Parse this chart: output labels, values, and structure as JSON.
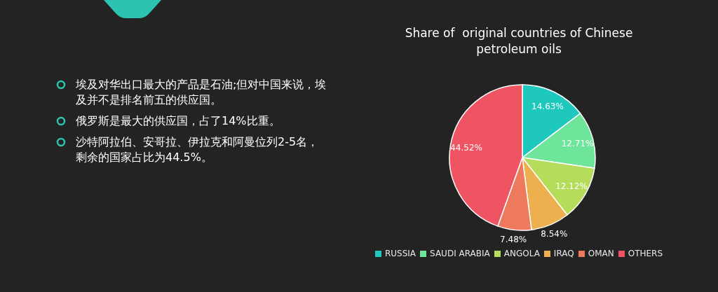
{
  "chart_data": {
    "type": "pie",
    "title": "Share of  original countries of Chinese petroleum oils",
    "categories": [
      "RUSSIA",
      "SAUDI ARABIA",
      "ANGOLA",
      "IRAQ",
      "OMAN",
      "OTHERS"
    ],
    "values": [
      14.63,
      12.71,
      12.12,
      8.54,
      7.48,
      44.52
    ],
    "value_labels": [
      "14.63%",
      "12.71%",
      "12.12%",
      "8.54%",
      "7.48%",
      "44.52%"
    ],
    "colors": [
      "#1fc8bc",
      "#6ee59b",
      "#b5dc5a",
      "#eeb04f",
      "#ee7a5e",
      "#ee5461"
    ],
    "legend": "bottom",
    "annotations": [
      "埃及对华出口最大的产品是石油;但对中国来说，埃及并不是排名前五的供应国。",
      "俄罗斯是最大的供应国，占了14%比重。",
      "沙特阿拉伯、安哥拉、伊拉克和阿曼位列2-5名，剩余的国家占比为44.5%。"
    ]
  }
}
